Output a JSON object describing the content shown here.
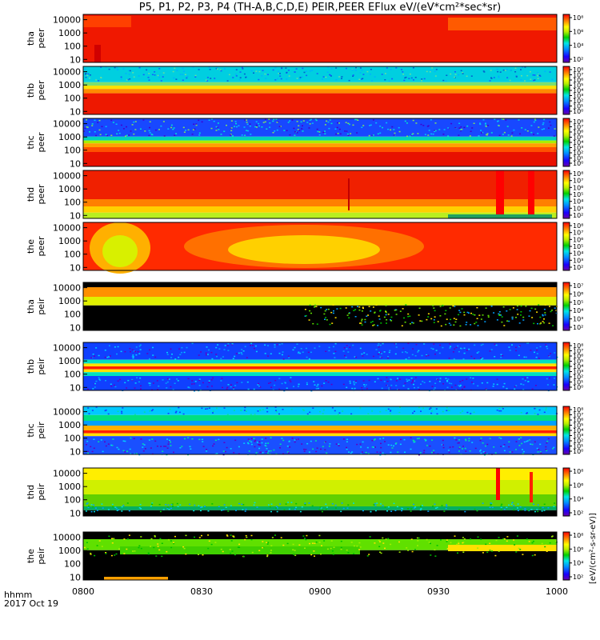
{
  "title": "P5, P1, P2, P3, P4 (TH-A,B,C,D,E) PEIR,PEER EFlux eV/(eV*cm²*sec*sr)",
  "footer": {
    "time_label": "hhmm",
    "date_label": "2017 Oct 19"
  },
  "chart_data": {
    "type": "heatmap",
    "title": "P5, P1, P2, P3, P4 (TH-A,B,C,D,E) PEIR,PEER EFlux eV/(eV*cm²*sec*sr)",
    "x_ticks": [
      "0800",
      "0830",
      "0900",
      "0930",
      "1000"
    ],
    "x_range": [
      "08:00",
      "10:00"
    ],
    "y_scale": "log",
    "y_range": [
      6,
      25000
    ],
    "y_ticks": [
      "10",
      "100",
      "1000",
      "10000"
    ],
    "colorbar_label": "[eV/(cm²-s-sr-eV)]",
    "panels": [
      {
        "label": [
          "tha",
          "peer"
        ],
        "cbar_ticks": [
          "10²",
          "10⁴",
          "10⁶",
          "10⁸"
        ],
        "cmax": 8,
        "cmin": 1
      },
      {
        "label": [
          "thb",
          "peer"
        ],
        "cbar_ticks": [
          "10⁰",
          "10¹",
          "10²",
          "10³",
          "10⁴",
          "10⁵",
          "10⁶",
          "10⁷",
          "10⁸"
        ],
        "cmax": 8,
        "cmin": 0
      },
      {
        "label": [
          "thc",
          "peer"
        ],
        "cbar_ticks": [
          "10⁰",
          "10¹",
          "10²",
          "10³",
          "10⁴",
          "10⁵",
          "10⁶",
          "10⁷",
          "10⁸"
        ],
        "cmax": 8,
        "cmin": 0
      },
      {
        "label": [
          "thd",
          "peer"
        ],
        "cbar_ticks": [
          "10²",
          "10³",
          "10⁴",
          "10⁵",
          "10⁶",
          "10⁷",
          "10⁸"
        ],
        "cmax": 8,
        "cmin": 1.5
      },
      {
        "label": [
          "the",
          "peer"
        ],
        "cbar_ticks": [
          "10²",
          "10³",
          "10⁴",
          "10⁵",
          "10⁶",
          "10⁷",
          "10⁸"
        ],
        "cmax": 8,
        "cmin": 1.5
      },
      {
        "label": [
          "tha",
          "peir"
        ],
        "cbar_ticks": [
          "10²",
          "10³",
          "10⁴",
          "10⁵",
          "10⁶",
          "10⁷"
        ],
        "cmax": 7,
        "cmin": 1.5
      },
      {
        "label": [
          "thb",
          "peir"
        ],
        "cbar_ticks": [
          "10⁰",
          "10¹",
          "10²",
          "10³",
          "10⁴",
          "10⁵",
          "10⁶",
          "10⁷",
          "10⁸"
        ],
        "cmax": 8,
        "cmin": 0
      },
      {
        "label": [
          "thc",
          "peir"
        ],
        "cbar_ticks": [
          "10⁰",
          "10¹",
          "10²",
          "10³",
          "10⁴",
          "10⁵",
          "10⁶",
          "10⁷",
          "10⁸"
        ],
        "cmax": 8,
        "cmin": 0
      },
      {
        "label": [
          "thd",
          "peir"
        ],
        "cbar_ticks": [
          "10²",
          "10⁴",
          "10⁶",
          "10⁸"
        ],
        "cmax": 8,
        "cmin": 1
      },
      {
        "label": [
          "the",
          "peir"
        ],
        "cbar_ticks": [
          "10²",
          "10⁴",
          "10⁶",
          "10⁸"
        ],
        "cmax": 8,
        "cmin": 1
      }
    ]
  }
}
